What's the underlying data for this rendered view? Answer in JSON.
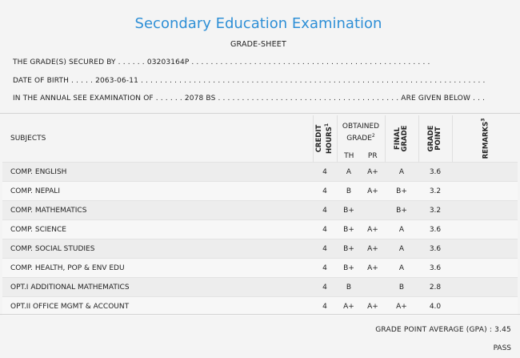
{
  "header": {
    "title": "Secondary Education Examination",
    "subtitle": "GRADE-SHEET"
  },
  "info": {
    "secured_by": "THE GRADE(S) SECURED BY . . . . . . 03203164P . . . . . . . . . . . . . . . . . . . . . . . . . . . . . . . . . . . . . . . . . . . . . . . . . .",
    "dob": "DATE OF BIRTH . . . . . 2063-06-11 . . . . . . . . . . . . . . . . . . . . . . . . . . . . . . . . . . . . . . . . . . . . . . . . . . . . . . . . . . . . . . . . . . . . . . . .",
    "exam": "IN THE ANNUAL SEE EXAMINATION OF . . . . . . 2078 BS . . . . . . . . . . . . . . . . . . . . . . . . . . . . . . . . . . . . . . ARE GIVEN BELOW . . ."
  },
  "table": {
    "headers": {
      "subjects": "SUBJECTS",
      "credit_line1": "CREDIT",
      "credit_line2": "HOURS",
      "credit_sup": "1",
      "obtained_line1": "OBTAINED",
      "obtained_line2": "GRADE",
      "obtained_sup": "2",
      "th": "TH",
      "pr": "PR",
      "final_line1": "FINAL",
      "final_line2": "GRADE",
      "gp_line1": "GRADE",
      "gp_line2": "POINT",
      "remarks": "REMARKS",
      "remarks_sup": "3"
    },
    "rows": [
      {
        "subject": "COMP. ENGLISH",
        "credit": "4",
        "th": "A",
        "pr": "A+",
        "final": "A",
        "gp": "3.6",
        "remarks": ""
      },
      {
        "subject": "COMP. NEPALI",
        "credit": "4",
        "th": "B",
        "pr": "A+",
        "final": "B+",
        "gp": "3.2",
        "remarks": ""
      },
      {
        "subject": "COMP. MATHEMATICS",
        "credit": "4",
        "th": "B+",
        "pr": "",
        "final": "B+",
        "gp": "3.2",
        "remarks": ""
      },
      {
        "subject": "COMP. SCIENCE",
        "credit": "4",
        "th": "B+",
        "pr": "A+",
        "final": "A",
        "gp": "3.6",
        "remarks": ""
      },
      {
        "subject": "COMP. SOCIAL STUDIES",
        "credit": "4",
        "th": "B+",
        "pr": "A+",
        "final": "A",
        "gp": "3.6",
        "remarks": ""
      },
      {
        "subject": "COMP. HEALTH, POP & ENV EDU",
        "credit": "4",
        "th": "B+",
        "pr": "A+",
        "final": "A",
        "gp": "3.6",
        "remarks": ""
      },
      {
        "subject": "OPT.I ADDITIONAL MATHEMATICS",
        "credit": "4",
        "th": "B",
        "pr": "",
        "final": "B",
        "gp": "2.8",
        "remarks": ""
      },
      {
        "subject": "OPT.II OFFICE MGMT & ACCOUNT",
        "credit": "4",
        "th": "A+",
        "pr": "A+",
        "final": "A+",
        "gp": "4.0",
        "remarks": ""
      }
    ]
  },
  "summary": {
    "gpa": "GRADE POINT AVERAGE (GPA) : 3.45",
    "result": "PASS"
  },
  "colors": {
    "title": "#2e8fd6",
    "background": "#f4f4f4"
  }
}
